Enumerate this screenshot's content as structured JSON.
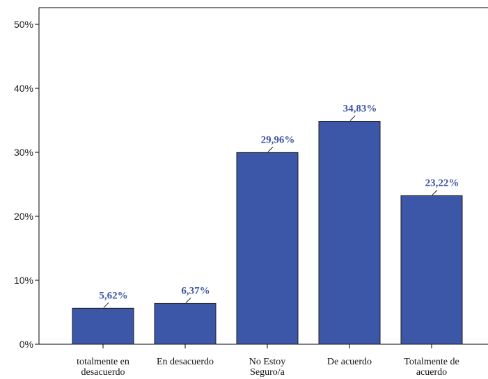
{
  "chart_data": {
    "type": "bar",
    "categories": [
      [
        "totalmente en",
        "desacuerdo"
      ],
      [
        "En desacuerdo"
      ],
      [
        "No Estoy",
        "Seguro/a"
      ],
      [
        "De acuerdo"
      ],
      [
        "Totalmente de",
        "acuerdo"
      ]
    ],
    "values": [
      5.62,
      6.37,
      29.96,
      34.83,
      23.22
    ],
    "data_labels": [
      "5,62%",
      "6,37%",
      "29,96%",
      "34,83%",
      "23,22%"
    ],
    "ylim": [
      0,
      50
    ],
    "yticks": [
      0,
      10,
      20,
      30,
      40,
      50
    ],
    "ytick_labels": [
      "0%",
      "10%",
      "20%",
      "30%",
      "40%",
      "50%"
    ],
    "title": "",
    "xlabel": "",
    "ylabel": "",
    "grid": false,
    "legend": "none",
    "colors": {
      "bar_fill": "#3d57a8",
      "bar_stroke": "#1b1b1b",
      "label_text": "#3f56a6",
      "axis": "#000000"
    }
  }
}
